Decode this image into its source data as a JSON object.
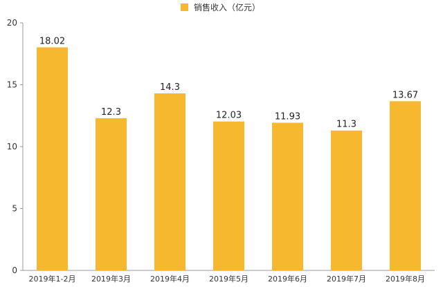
{
  "chart_data": {
    "type": "bar",
    "title": "",
    "xlabel": "",
    "ylabel": "",
    "categories": [
      "2019年1-2月",
      "2019年3月",
      "2019年4月",
      "2019年5月",
      "2019年6月",
      "2019年7月",
      "2019年8月"
    ],
    "series": [
      {
        "name": "销售收入（亿元）",
        "values": [
          18.02,
          12.3,
          14.3,
          12.03,
          11.93,
          11.3,
          13.67
        ],
        "color": "#F5B82E"
      }
    ],
    "data_labels": [
      "18.02",
      "12.3",
      "14.3",
      "12.03",
      "11.93",
      "11.3",
      "13.67"
    ],
    "ylim": [
      0,
      20
    ],
    "yticks": [
      0,
      5,
      10,
      15,
      20
    ],
    "ytick_labels": [
      "0",
      "5",
      "10",
      "15",
      "20"
    ],
    "grid": false,
    "legend_position": "top-center",
    "axis_color": "#999999"
  }
}
